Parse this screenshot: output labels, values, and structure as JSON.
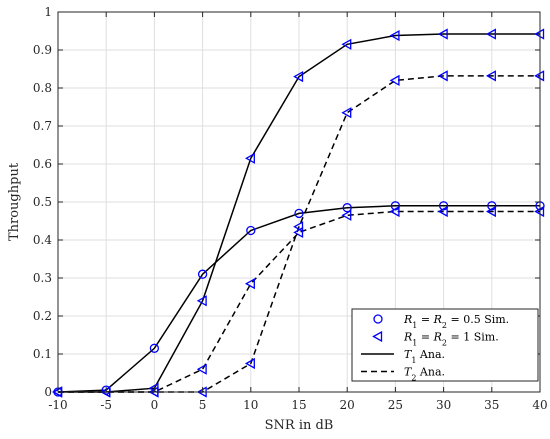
{
  "chart_data": {
    "type": "line",
    "xlabel": "SNR in dB",
    "ylabel": "Throughput",
    "xlim": [
      -10,
      40
    ],
    "ylim": [
      0,
      1
    ],
    "x_ticks": [
      -10,
      -5,
      0,
      5,
      10,
      15,
      20,
      25,
      30,
      35,
      40
    ],
    "y_ticks": [
      0,
      0.1,
      0.2,
      0.3,
      0.4,
      0.5,
      0.6,
      0.7,
      0.8,
      0.9,
      1
    ],
    "y_tick_labels": [
      "0",
      "0.1",
      "0.2",
      "0.3",
      "0.4",
      "0.5",
      "0.6",
      "0.7",
      "0.8",
      "0.9",
      "1"
    ],
    "grid": true,
    "legend_position": "bottom-right",
    "legend": [
      {
        "marker": "circle",
        "line": "none",
        "sub": "1",
        "sub2": "2",
        "label_var": "R",
        "label_mid": " = ",
        "label_end": " = 0.5 Sim."
      },
      {
        "marker": "triangle-left",
        "line": "none",
        "sub": "1",
        "sub2": "2",
        "label_var": "R",
        "label_mid": " = ",
        "label_end": " = 1 Sim."
      },
      {
        "marker": "none",
        "line": "solid",
        "label_var": "T",
        "sub": "1",
        "label_end": " Ana."
      },
      {
        "marker": "none",
        "line": "dashed",
        "label_var": "T",
        "sub": "2",
        "label_end": " Ana."
      }
    ],
    "x": [
      -10,
      -5,
      0,
      5,
      10,
      15,
      20,
      25,
      30,
      35,
      40
    ],
    "series": [
      {
        "group": "R=0.5",
        "metric": "T1",
        "line": "solid",
        "marker": "circle",
        "values": [
          0.0,
          0.005,
          0.115,
          0.31,
          0.425,
          0.47,
          0.485,
          0.49,
          0.49,
          0.49,
          0.49
        ]
      },
      {
        "group": "R=0.5",
        "metric": "T2",
        "line": "dashed",
        "marker": "triangle-left",
        "values": [
          0.0,
          0.0,
          0.0,
          0.06,
          0.285,
          0.42,
          0.465,
          0.475,
          0.475,
          0.475,
          0.475
        ]
      },
      {
        "group": "R=1",
        "metric": "T1",
        "line": "solid",
        "marker": "triangle-left",
        "values": [
          0.0,
          0.0,
          0.01,
          0.24,
          0.615,
          0.83,
          0.915,
          0.938,
          0.942,
          0.942,
          0.942
        ]
      },
      {
        "group": "R=1",
        "metric": "T2",
        "line": "dashed",
        "marker": "triangle-left",
        "values": [
          0.0,
          0.0,
          0.0,
          0.0,
          0.075,
          0.435,
          0.735,
          0.82,
          0.832,
          0.832,
          0.832
        ]
      }
    ],
    "colors": {
      "line": "#000000",
      "marker": "#0000ff",
      "grid": "#dfdfdf",
      "axis": "#262626"
    }
  }
}
